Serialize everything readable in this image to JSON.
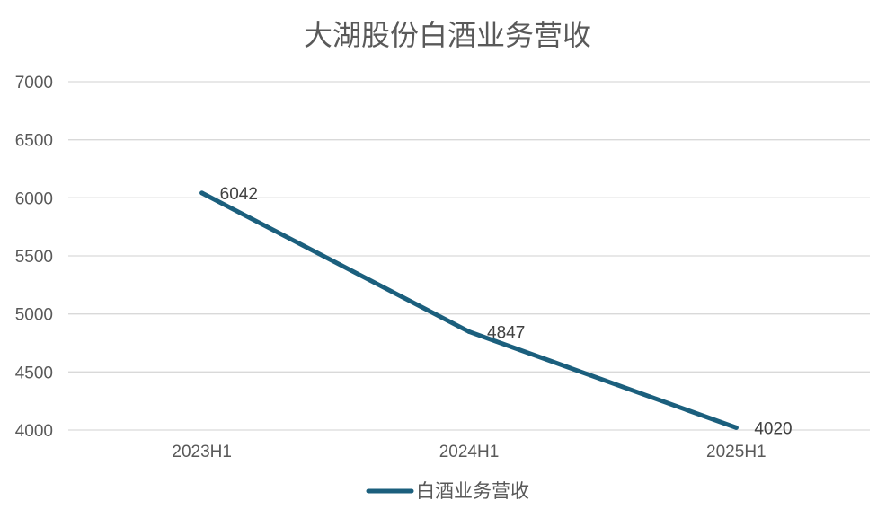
{
  "chart_data": {
    "type": "line",
    "title": "大湖股份白酒业务营收",
    "categories": [
      "2023H1",
      "2024H1",
      "2025H1"
    ],
    "series": [
      {
        "name": "白酒业务营收",
        "values": [
          6042,
          4847,
          4020
        ],
        "color": "#1b5f7d"
      }
    ],
    "xlabel": "",
    "ylabel": "",
    "ylim": [
      4000,
      7000
    ],
    "yticks": [
      "4000",
      "4500",
      "5000",
      "5500",
      "6000",
      "6500",
      "7000"
    ],
    "grid": true,
    "legend_position": "bottom",
    "data_labels": [
      "6042",
      "4847",
      "4020"
    ]
  }
}
